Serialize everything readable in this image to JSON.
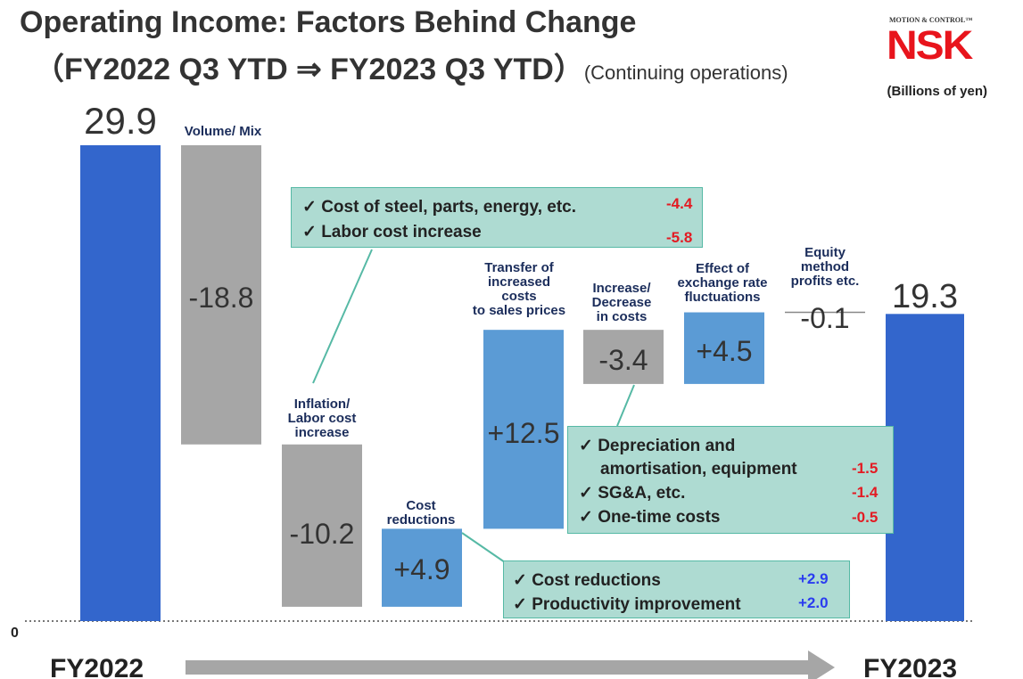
{
  "title": {
    "line1": "Operating Income: Factors Behind Change",
    "line2": "（FY2022 Q3 YTD ⇒ FY2023 Q3 YTD）",
    "line2_sub": "(Continuing operations)"
  },
  "logo": {
    "small": "MOTION & CONTROL™",
    "big": "NSK"
  },
  "units": "(Billions of yen)",
  "colors": {
    "start_end": "#3366cc",
    "decrease": "#a6a6a6",
    "increase": "#5b9bd5",
    "callout_bg": "#aedbd2",
    "negative": "#e31b23",
    "positive": "#2a3cf0"
  },
  "chart_data": {
    "type": "waterfall",
    "title": "Operating Income: Factors Behind Change",
    "units": "Billions of yen",
    "ylim": [
      0,
      29.9
    ],
    "baseline_label": "0",
    "x_axis": {
      "start_label": "FY2022",
      "end_label": "FY2023"
    },
    "steps": [
      {
        "label": "",
        "value": 29.9,
        "kind": "total",
        "value_label": "29.9"
      },
      {
        "label": "Volume/ Mix",
        "value": -18.8,
        "kind": "decrease",
        "value_label": "-18.8"
      },
      {
        "label": "Inflation/ Labor cost increase",
        "value": -10.2,
        "kind": "decrease",
        "value_label": "-10.2"
      },
      {
        "label": "Cost reductions",
        "value": 4.9,
        "kind": "increase",
        "value_label": "+4.9"
      },
      {
        "label": "Transfer of increased costs to sales prices",
        "value": 12.5,
        "kind": "increase",
        "value_label": "+12.5"
      },
      {
        "label": "Increase/ Decrease in costs",
        "value": -3.4,
        "kind": "decrease",
        "value_label": "-3.4"
      },
      {
        "label": "Effect of exchange rate fluctuations",
        "value": 4.5,
        "kind": "increase",
        "value_label": "+4.5"
      },
      {
        "label": "Equity method profits etc.",
        "value": -0.1,
        "kind": "decrease",
        "value_label": "-0.1"
      },
      {
        "label": "",
        "value": 19.3,
        "kind": "total",
        "value_label": "19.3"
      }
    ],
    "step_labels_lines": [
      [],
      [
        "Volume/ Mix"
      ],
      [
        "Inflation/",
        "Labor cost",
        "increase"
      ],
      [
        "Cost",
        "reductions"
      ],
      [
        "Transfer of",
        "increased",
        "costs",
        "to sales prices"
      ],
      [
        "Increase/",
        "Decrease",
        "in costs"
      ],
      [
        "Effect of",
        "exchange rate",
        "fluctuations"
      ],
      [
        "Equity",
        "method",
        "profits etc."
      ],
      []
    ]
  },
  "callouts": {
    "inflation": {
      "items": [
        {
          "text": "✓ Cost of steel, parts, energy, etc.",
          "value": "-4.4"
        },
        {
          "text": "✓ Labor cost increase",
          "value": "-5.8"
        }
      ]
    },
    "costs": {
      "line1": "✓ Depreciation and",
      "line2": "amortisation, equipment",
      "value1": "-1.5",
      "items": [
        {
          "text": "✓ SG&A, etc.",
          "value": "-1.4"
        },
        {
          "text": "✓ One-time costs",
          "value": "-0.5"
        }
      ]
    },
    "reductions": {
      "items": [
        {
          "text": "✓ Cost reductions",
          "value": "+2.9"
        },
        {
          "text": "✓ Productivity improvement",
          "value": "+2.0"
        }
      ]
    }
  }
}
